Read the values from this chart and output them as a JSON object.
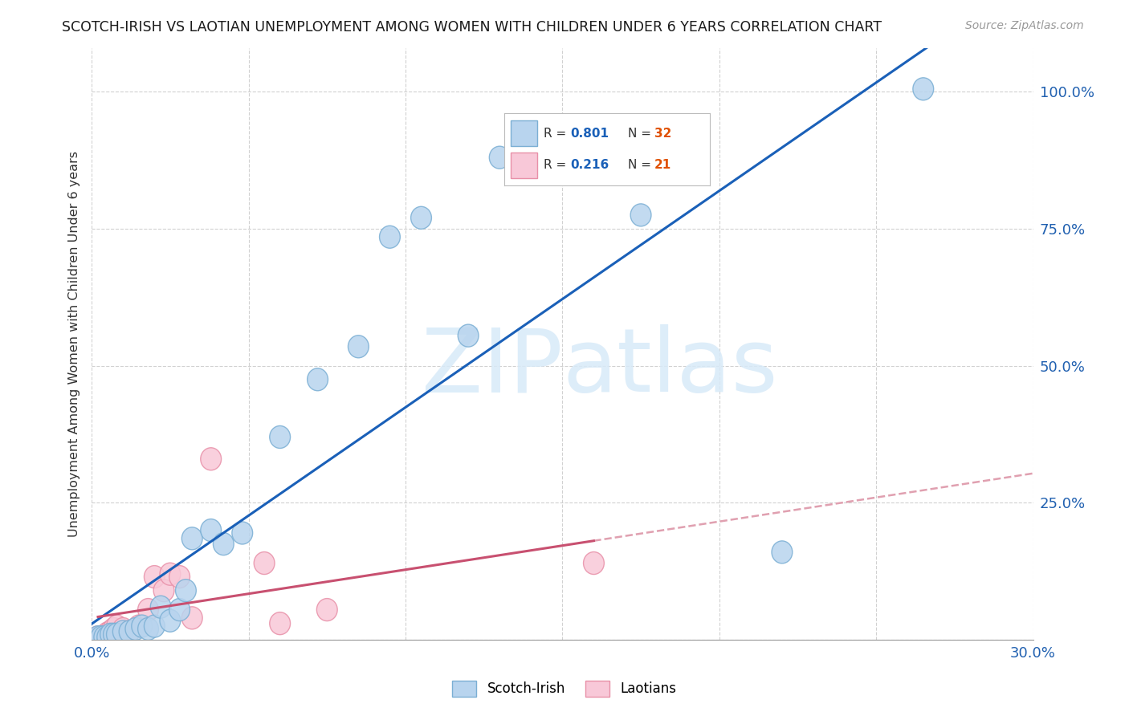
{
  "title": "SCOTCH-IRISH VS LAOTIAN UNEMPLOYMENT AMONG WOMEN WITH CHILDREN UNDER 6 YEARS CORRELATION CHART",
  "source": "Source: ZipAtlas.com",
  "ylabel": "Unemployment Among Women with Children Under 6 years",
  "xlim": [
    0.0,
    0.3
  ],
  "ylim": [
    0.0,
    1.08
  ],
  "xticks": [
    0.0,
    0.05,
    0.1,
    0.15,
    0.2,
    0.25,
    0.3
  ],
  "xticklabels": [
    "0.0%",
    "",
    "",
    "",
    "",
    "",
    "30.0%"
  ],
  "yticks": [
    0.0,
    0.25,
    0.5,
    0.75,
    1.0
  ],
  "yticklabels": [
    "",
    "25.0%",
    "50.0%",
    "75.0%",
    "100.0%"
  ],
  "blue_marker_face": "#b8d4ee",
  "blue_marker_edge": "#7bafd4",
  "pink_marker_face": "#f8c8d8",
  "pink_marker_edge": "#e890a8",
  "blue_line_color": "#1a60b8",
  "pink_line_solid_color": "#c85070",
  "pink_line_dash_color": "#e0a0b0",
  "watermark_color": "#d8eaf8",
  "legend_r1": "0.801",
  "legend_n1": "32",
  "legend_r2": "0.216",
  "legend_n2": "21",
  "scotch_irish_x": [
    0.002,
    0.003,
    0.004,
    0.005,
    0.006,
    0.007,
    0.008,
    0.01,
    0.012,
    0.014,
    0.016,
    0.018,
    0.02,
    0.022,
    0.025,
    0.028,
    0.03,
    0.032,
    0.038,
    0.042,
    0.048,
    0.06,
    0.072,
    0.085,
    0.095,
    0.105,
    0.12,
    0.13,
    0.15,
    0.175,
    0.22,
    0.265
  ],
  "scotch_irish_y": [
    0.005,
    0.005,
    0.005,
    0.005,
    0.01,
    0.01,
    0.01,
    0.015,
    0.015,
    0.02,
    0.025,
    0.02,
    0.025,
    0.06,
    0.035,
    0.055,
    0.09,
    0.185,
    0.2,
    0.175,
    0.195,
    0.37,
    0.475,
    0.535,
    0.735,
    0.77,
    0.555,
    0.88,
    0.885,
    0.775,
    0.16,
    1.005
  ],
  "laotian_x": [
    0.002,
    0.003,
    0.004,
    0.005,
    0.006,
    0.007,
    0.008,
    0.01,
    0.012,
    0.015,
    0.018,
    0.02,
    0.023,
    0.025,
    0.028,
    0.032,
    0.038,
    0.055,
    0.06,
    0.075,
    0.16
  ],
  "laotian_y": [
    0.005,
    0.005,
    0.005,
    0.012,
    0.015,
    0.02,
    0.025,
    0.02,
    0.015,
    0.025,
    0.055,
    0.115,
    0.09,
    0.12,
    0.115,
    0.04,
    0.33,
    0.14,
    0.03,
    0.055,
    0.14
  ]
}
